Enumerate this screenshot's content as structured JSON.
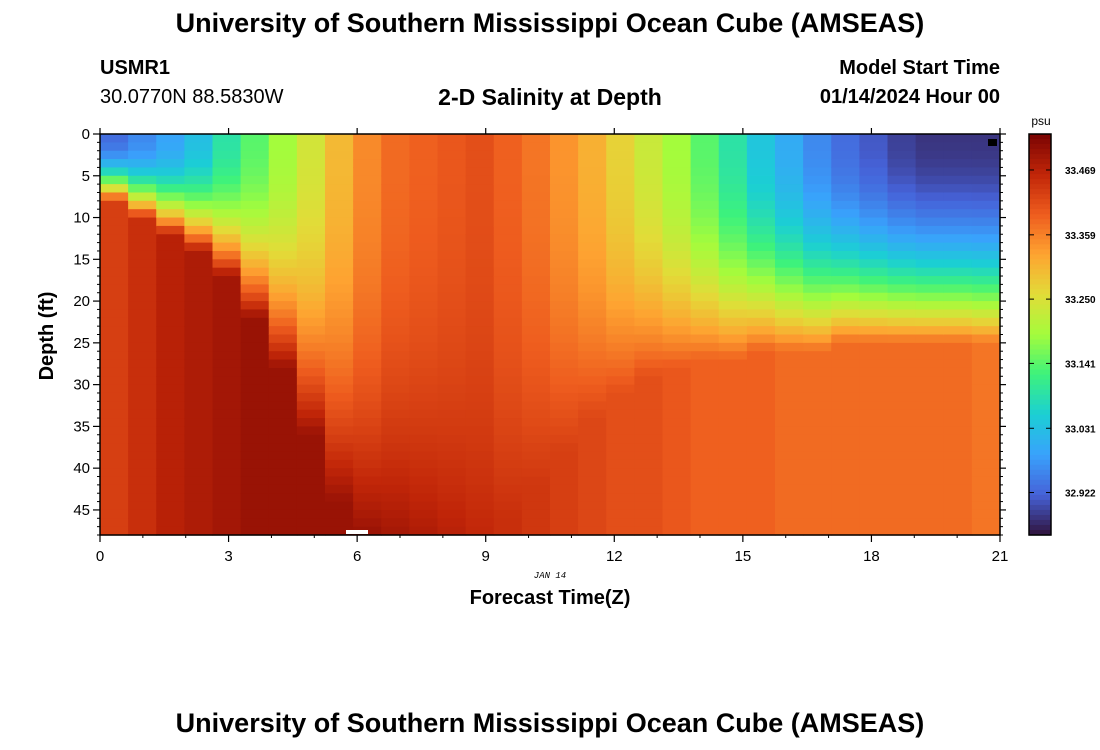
{
  "header": {
    "main_title": "University of Southern Mississippi Ocean Cube (AMSEAS)",
    "station_id": "USMR1",
    "station_coords": "30.0770N  88.5830W",
    "plot_subtitle": "2-D Salinity at Depth",
    "model_start_label": "Model Start Time",
    "model_start_value": "01/14/2024 Hour 00"
  },
  "footer": {
    "title": "University of Southern Mississippi Ocean Cube (AMSEAS)"
  },
  "chart_data": {
    "type": "heatmap",
    "title": "2-D Salinity at Depth",
    "xlabel": "Forecast Time(Z)",
    "ylabel": "Depth (ft)",
    "date_label": "JAN 14",
    "x_ticks": [
      "0",
      "3",
      "6",
      "9",
      "12",
      "15",
      "18",
      "21"
    ],
    "y_ticks": [
      "0",
      "5",
      "10",
      "15",
      "20",
      "25",
      "30",
      "35",
      "40",
      "45"
    ],
    "xlim": [
      0,
      21
    ],
    "ylim": [
      0,
      48
    ],
    "colorbar": {
      "unit": "psu",
      "ticks": [
        "33.469",
        "33.359",
        "33.250",
        "33.141",
        "33.031",
        "32.922"
      ],
      "min": 32.85,
      "max": 33.53
    },
    "colors": {
      "turbo_min": "#30123b",
      "turbo_max": "#7a0403"
    },
    "surface_salinity_by_hour": [
      32.93,
      32.96,
      32.99,
      33.03,
      33.09,
      33.14,
      33.19,
      33.24,
      33.3,
      33.35,
      33.38,
      33.39,
      33.4,
      33.41,
      33.39,
      33.37,
      33.34,
      33.31,
      33.27,
      33.23,
      33.19,
      33.14,
      33.09,
      33.04,
      33.0,
      32.96,
      32.93,
      32.91,
      32.89,
      32.88,
      32.88,
      32.88
    ],
    "bottom_salinity_by_hour": [
      33.43,
      33.45,
      33.47,
      33.48,
      33.49,
      33.5,
      33.5,
      33.5,
      33.5,
      33.5,
      33.49,
      33.48,
      33.47,
      33.46,
      33.45,
      33.44,
      33.43,
      33.42,
      33.41,
      33.41,
      33.4,
      33.39,
      33.39,
      33.39,
      33.38,
      33.38,
      33.38,
      33.38,
      33.38,
      33.38,
      33.38,
      33.37
    ],
    "mixed_layer_depth_ft_by_hour": [
      8,
      10,
      12,
      14,
      17,
      22,
      28,
      36,
      44,
      48,
      48,
      48,
      48,
      48,
      46,
      42,
      38,
      34,
      31,
      29,
      28,
      27,
      27,
      26,
      26,
      26,
      25,
      25,
      25,
      25,
      25,
      25
    ]
  }
}
